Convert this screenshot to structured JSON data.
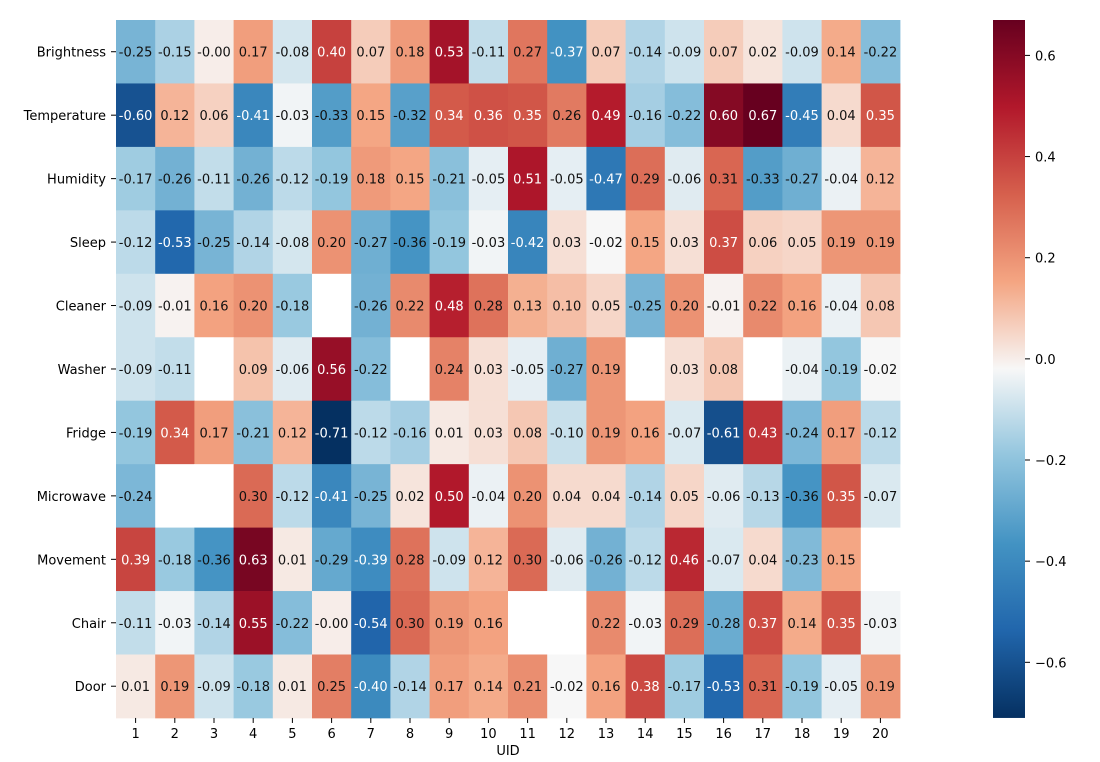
{
  "chart_data": {
    "type": "heatmap",
    "title": "",
    "xlabel": "UID",
    "ylabel": "",
    "x_categories": [
      "1",
      "2",
      "3",
      "4",
      "5",
      "6",
      "7",
      "8",
      "9",
      "10",
      "11",
      "12",
      "13",
      "14",
      "15",
      "16",
      "17",
      "18",
      "19",
      "20"
    ],
    "y_categories": [
      "Brightness",
      "Temperature",
      "Humidity",
      "Sleep",
      "Cleaner",
      "Washer",
      "Fridge",
      "Microwave",
      "Movement",
      "Chair",
      "Door"
    ],
    "values": [
      [
        -0.25,
        -0.15,
        -0.0,
        0.17,
        -0.08,
        0.4,
        0.07,
        0.18,
        0.53,
        -0.11,
        0.27,
        -0.37,
        0.07,
        -0.14,
        -0.09,
        0.07,
        0.02,
        -0.09,
        0.14,
        -0.22
      ],
      [
        -0.6,
        0.12,
        0.06,
        -0.41,
        -0.03,
        -0.33,
        0.15,
        -0.32,
        0.34,
        0.36,
        0.35,
        0.26,
        0.49,
        -0.16,
        -0.22,
        0.6,
        0.67,
        -0.45,
        0.04,
        0.35
      ],
      [
        -0.17,
        -0.26,
        -0.11,
        -0.26,
        -0.12,
        -0.19,
        0.18,
        0.15,
        -0.21,
        -0.05,
        0.51,
        -0.05,
        -0.47,
        0.29,
        -0.06,
        0.31,
        -0.33,
        -0.27,
        -0.04,
        0.12
      ],
      [
        -0.12,
        -0.53,
        -0.25,
        -0.14,
        -0.08,
        0.2,
        -0.27,
        -0.36,
        -0.19,
        -0.03,
        -0.42,
        0.03,
        -0.02,
        0.15,
        0.03,
        0.37,
        0.06,
        0.05,
        0.19,
        0.19
      ],
      [
        -0.09,
        -0.01,
        0.16,
        0.2,
        -0.18,
        null,
        -0.26,
        0.22,
        0.48,
        0.28,
        0.13,
        0.1,
        0.05,
        -0.25,
        0.2,
        -0.01,
        0.22,
        0.16,
        -0.04,
        0.08
      ],
      [
        -0.09,
        -0.11,
        null,
        0.09,
        -0.06,
        0.56,
        -0.22,
        null,
        0.24,
        0.03,
        -0.05,
        -0.27,
        0.19,
        null,
        0.03,
        0.08,
        null,
        -0.04,
        -0.19,
        -0.02
      ],
      [
        -0.19,
        0.34,
        0.17,
        -0.21,
        0.12,
        -0.71,
        -0.12,
        -0.16,
        0.01,
        0.03,
        0.08,
        -0.1,
        0.19,
        0.16,
        -0.07,
        -0.61,
        0.43,
        -0.24,
        0.17,
        -0.12
      ],
      [
        -0.24,
        null,
        null,
        0.3,
        -0.12,
        -0.41,
        -0.25,
        0.02,
        0.5,
        -0.04,
        0.2,
        0.04,
        0.04,
        -0.14,
        0.05,
        -0.06,
        -0.13,
        -0.36,
        0.35,
        -0.07
      ],
      [
        0.39,
        -0.18,
        -0.36,
        0.63,
        0.01,
        -0.29,
        -0.39,
        0.28,
        -0.09,
        0.12,
        0.3,
        -0.06,
        -0.26,
        -0.12,
        0.46,
        -0.07,
        0.04,
        -0.23,
        0.15,
        null
      ],
      [
        -0.11,
        -0.03,
        -0.14,
        0.55,
        -0.22,
        -0.0,
        -0.54,
        0.3,
        0.19,
        0.16,
        null,
        null,
        0.22,
        -0.03,
        0.29,
        -0.28,
        0.37,
        0.14,
        0.35,
        -0.03
      ],
      [
        0.01,
        0.19,
        -0.09,
        -0.18,
        0.01,
        0.25,
        -0.4,
        -0.14,
        0.17,
        0.14,
        0.21,
        -0.02,
        0.16,
        0.38,
        -0.17,
        -0.53,
        0.31,
        -0.19,
        -0.05,
        0.19
      ]
    ],
    "value_range": [
      -0.71,
      0.67
    ],
    "colormap": "RdBu_r",
    "colorbar_ticks": [
      0.6,
      0.4,
      0.2,
      0.0,
      -0.2,
      -0.4,
      -0.6
    ],
    "colorbar_tick_labels": [
      "0.6",
      "0.4",
      "0.2",
      "0.0",
      "−0.2",
      "−0.4",
      "−0.6"
    ],
    "missing_color": "#ffffff",
    "grid": false,
    "annotated": true
  }
}
